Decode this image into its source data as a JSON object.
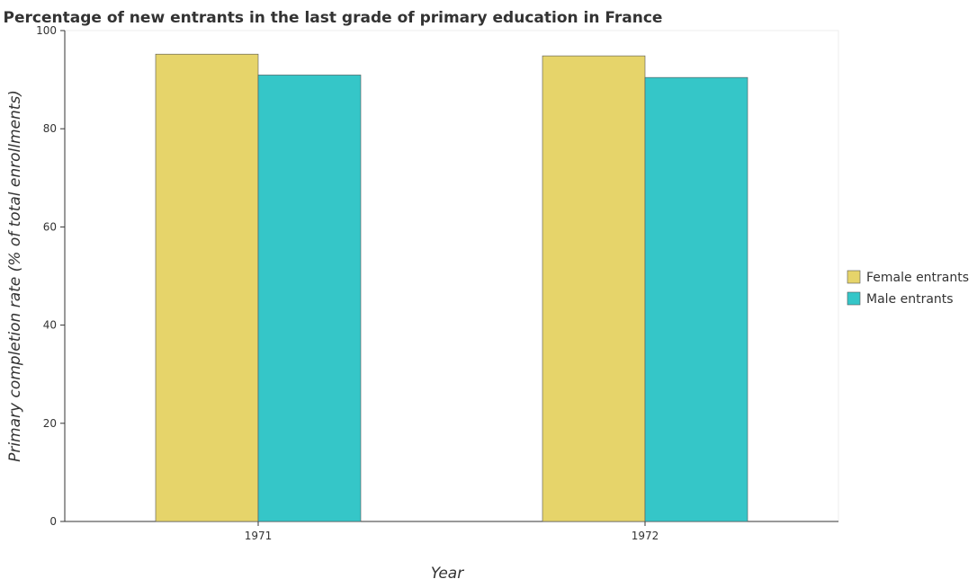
{
  "chart_data": {
    "type": "bar",
    "title": "Percentage of new entrants in the last grade of primary education in France",
    "xlabel": "Year",
    "ylabel": "Primary completion rate (% of total enrollments)",
    "categories": [
      "1971",
      "1972"
    ],
    "series": [
      {
        "name": "Female entrants",
        "values": [
          95.2,
          94.85
        ],
        "color": "#e6d46a"
      },
      {
        "name": "Male entrants",
        "values": [
          90.95,
          90.45
        ],
        "color": "#35c6c8"
      }
    ],
    "ylim": [
      0,
      100
    ],
    "yticks": [
      "0",
      "20",
      "40",
      "60",
      "80",
      "100"
    ],
    "grid": false,
    "legend_position": "right"
  }
}
